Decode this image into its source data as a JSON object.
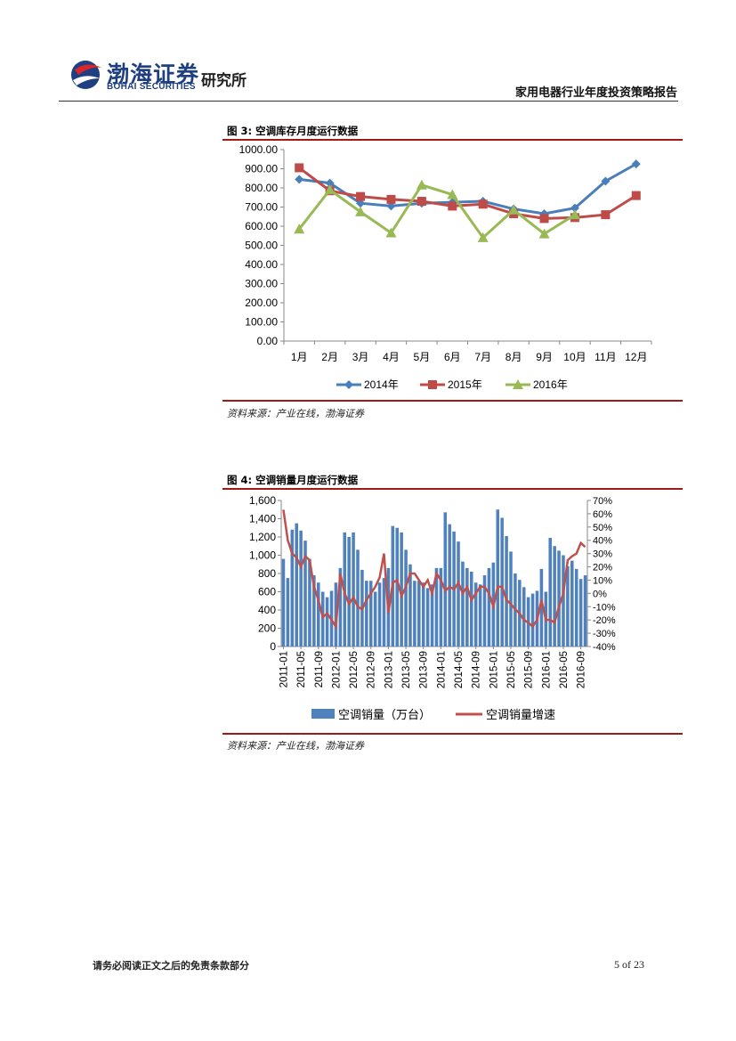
{
  "header": {
    "logo_cn": "渤海证券",
    "logo_en": "BOHAI SECURITIES",
    "institute": "研究所",
    "report_title": "家用电器行业年度投资策略报告"
  },
  "figure3": {
    "title": "图 3:  空调库存月度运行数据",
    "source": "资料来源：产业在线，渤海证券"
  },
  "figure4": {
    "title": "图 4:  空调销量月度运行数据",
    "source": "资料来源：产业在线，渤海证券"
  },
  "footer": {
    "note": "请务必阅读正文之后的免责条款部分",
    "page": "5 of 23"
  },
  "colors": {
    "s2014": "#4a7ebb",
    "s2015": "#be4b48",
    "s2016": "#98b954",
    "bars": "#4f81bd",
    "growth": "#c0504d",
    "rule": "#a01818"
  },
  "chart_data": [
    {
      "type": "line",
      "categories": [
        "1月",
        "2月",
        "3月",
        "4月",
        "5月",
        "6月",
        "7月",
        "8月",
        "9月",
        "10月",
        "11月",
        "12月"
      ],
      "ylim": [
        0,
        1000
      ],
      "yticks": [
        "0.00",
        "100.00",
        "200.00",
        "300.00",
        "400.00",
        "500.00",
        "600.00",
        "700.00",
        "800.00",
        "900.00",
        "1000.00"
      ],
      "series": [
        {
          "name": "2014年",
          "values": [
            845,
            825,
            720,
            705,
            720,
            725,
            730,
            690,
            665,
            695,
            835,
            925
          ]
        },
        {
          "name": "2015年",
          "values": [
            905,
            785,
            755,
            740,
            730,
            705,
            715,
            665,
            640,
            645,
            660,
            760
          ]
        },
        {
          "name": "2016年",
          "values": [
            585,
            790,
            675,
            565,
            815,
            765,
            540,
            685,
            560,
            660,
            null,
            null
          ]
        }
      ]
    },
    {
      "type": "bar+line",
      "x_ticks": [
        "2011-01",
        "2011-05",
        "2011-09",
        "2012-01",
        "2012-05",
        "2012-09",
        "2013-01",
        "2013-05",
        "2013-09",
        "2014-01",
        "2014-05",
        "2014-09",
        "2015-01",
        "2015-05",
        "2015-09",
        "2016-01",
        "2016-05",
        "2016-09"
      ],
      "ylim_left": [
        0,
        1600
      ],
      "yticks_left": [
        "0",
        "200",
        "400",
        "600",
        "800",
        "1,000",
        "1,200",
        "1,400",
        "1,600"
      ],
      "ylim_right": [
        -40,
        70
      ],
      "yticks_right": [
        "-40%",
        "-30%",
        "-20%",
        "-10%",
        "0%",
        "10%",
        "20%",
        "30%",
        "40%",
        "50%",
        "60%",
        "70%"
      ],
      "series": [
        {
          "name": "空调销量（万台）",
          "axis": "left",
          "values": [
            960,
            750,
            1280,
            1350,
            1270,
            1160,
            960,
            780,
            700,
            600,
            540,
            610,
            700,
            860,
            1250,
            1200,
            1250,
            1060,
            840,
            720,
            720,
            600,
            700,
            750,
            860,
            1320,
            1300,
            1250,
            1060,
            900,
            720,
            720,
            700,
            640,
            680,
            860,
            860,
            1470,
            1340,
            1260,
            1150,
            930,
            860,
            820,
            700,
            680,
            780,
            860,
            920,
            1500,
            1410,
            1210,
            1040,
            800,
            730,
            650,
            540,
            580,
            610,
            850,
            600,
            1190,
            1100,
            1050,
            1000,
            880,
            940,
            850,
            740,
            780
          ]
        },
        {
          "name": "空调销量增速",
          "axis": "right",
          "values": [
            63,
            40,
            30,
            27,
            20,
            28,
            25,
            5,
            -5,
            -18,
            -15,
            -20,
            -25,
            15,
            0,
            -8,
            -3,
            -10,
            -12,
            -5,
            0,
            5,
            12,
            30,
            -15,
            8,
            10,
            -2,
            5,
            15,
            15,
            10,
            5,
            10,
            0,
            15,
            10,
            2,
            5,
            3,
            8,
            0,
            5,
            -5,
            0,
            5,
            5,
            0,
            -10,
            5,
            5,
            -5,
            -8,
            -12,
            -15,
            -20,
            -22,
            -25,
            -20,
            -5,
            -20,
            -20,
            -22,
            -10,
            0,
            25,
            28,
            30,
            38,
            35
          ]
        }
      ]
    }
  ]
}
